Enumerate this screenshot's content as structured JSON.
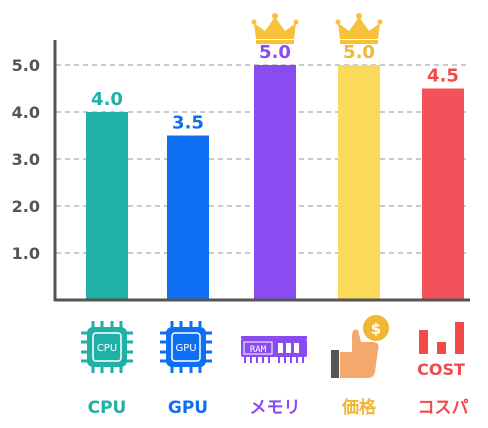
{
  "chart_data": {
    "type": "bar",
    "categories": [
      "CPU",
      "GPU",
      "メモリ",
      "価格",
      "コスパ"
    ],
    "values": [
      4.0,
      3.5,
      5.0,
      5.0,
      4.5
    ],
    "value_labels": [
      "4.0",
      "3.5",
      "5.0",
      "5.0",
      "4.5"
    ],
    "colors": [
      "#1fb0a6",
      "#0f6ff2",
      "#8a4cf0",
      "#fbd95a",
      "#f4525a"
    ],
    "label_colors": [
      "#1fb0a6",
      "#0f6ff2",
      "#8a4cf0",
      "#f2b632",
      "#f04a4a"
    ],
    "crowned": [
      false,
      false,
      true,
      true,
      false
    ],
    "yticks": [
      "1.0",
      "2.0",
      "3.0",
      "4.0",
      "5.0"
    ],
    "ylim": [
      0,
      5.5
    ],
    "grid": true,
    "icons": [
      "cpu-chip-icon",
      "gpu-chip-icon",
      "ram-module-icon",
      "price-thumbs-up-coin-icon",
      "cost-bar-icon"
    ],
    "icon_texts": {
      "cpu": "CPU",
      "gpu": "GPU",
      "ram": "RAM",
      "coin": "$",
      "cost": "COST"
    }
  }
}
